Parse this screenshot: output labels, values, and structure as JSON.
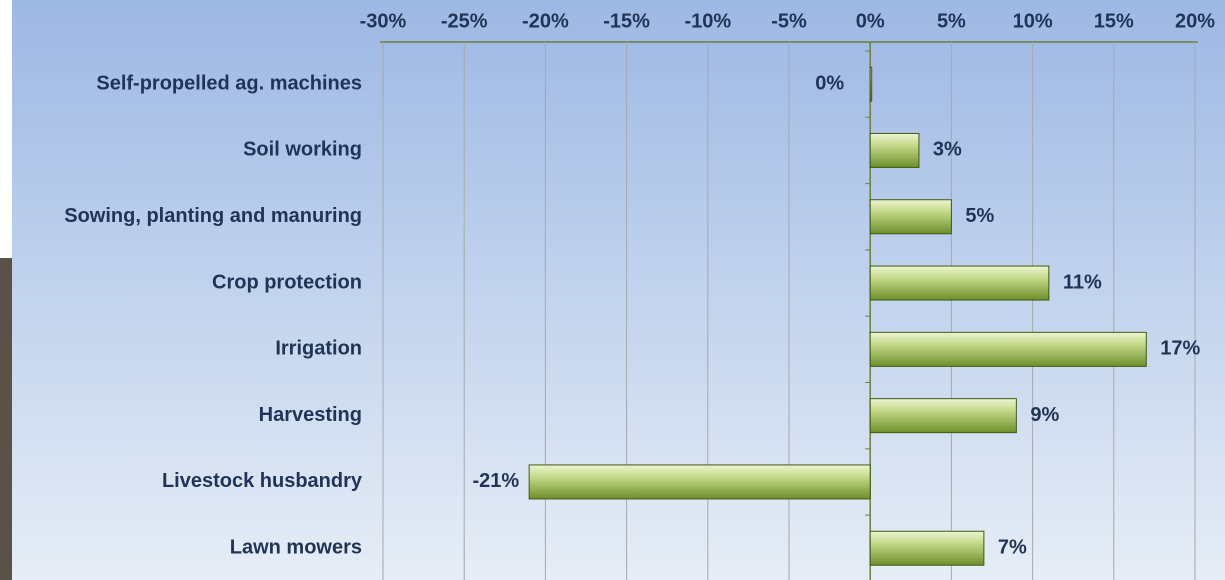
{
  "chart_data": {
    "type": "bar",
    "orientation": "horizontal",
    "categories": [
      "Self-propelled ag. machines",
      "Soil working",
      "Sowing, planting and manuring",
      "Crop protection",
      "Irrigation",
      "Harvesting",
      "Livestock husbandry",
      "Lawn mowers"
    ],
    "values": [
      0,
      3,
      5,
      11,
      17,
      9,
      -21,
      7
    ],
    "value_labels": [
      "0%",
      "3%",
      "5%",
      "11%",
      "17%",
      "9%",
      "-21%",
      "7%"
    ],
    "color": "#6e8f2a",
    "xlim": [
      -30,
      20
    ],
    "xticks": [
      {
        "value": -30,
        "label": "-30%"
      },
      {
        "value": -25,
        "label": "-25%"
      },
      {
        "value": -20,
        "label": "-20%"
      },
      {
        "value": -15,
        "label": "-15%"
      },
      {
        "value": -10,
        "label": "-10%"
      },
      {
        "value": -5,
        "label": "-5%"
      },
      {
        "value": 0,
        "label": "0%"
      },
      {
        "value": 5,
        "label": "5%"
      },
      {
        "value": 10,
        "label": "10%"
      },
      {
        "value": 15,
        "label": "15%"
      },
      {
        "value": 20,
        "label": "20%"
      }
    ],
    "grid": true
  }
}
